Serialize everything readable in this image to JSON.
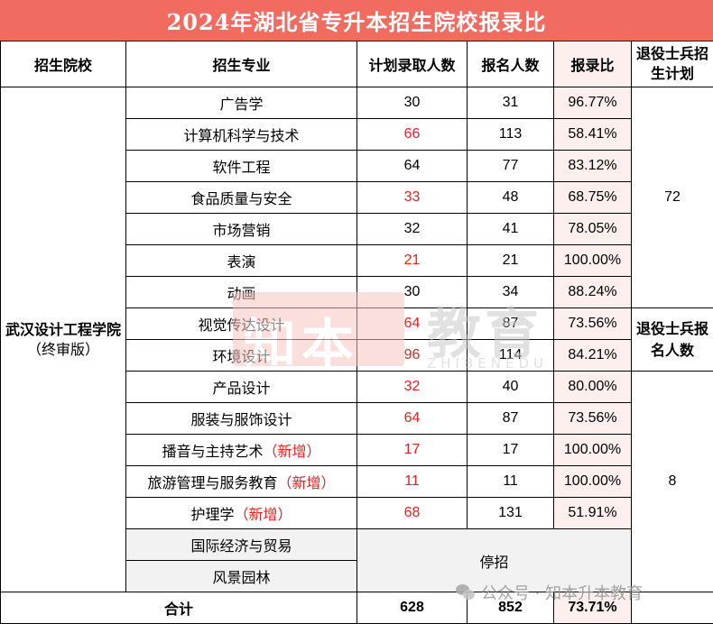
{
  "title": "2024年湖北省专升本招生院校报录比",
  "headers": {
    "school": "招生院校",
    "major": "招生专业",
    "planned": "计划录取人数",
    "applicants": "报名人数",
    "ratio": "报录比",
    "veteran_plan": "退役士兵招生计划",
    "veteran_applicants": "退役士兵报名人数"
  },
  "school": {
    "name": "武汉设计工程学院",
    "note": "（终审版）"
  },
  "rows": [
    {
      "major": "广告学",
      "new_tag": "",
      "planned": "30",
      "planned_red": false,
      "applicants": "31",
      "ratio": "96.77%"
    },
    {
      "major": "计算机科学与技术",
      "new_tag": "",
      "planned": "66",
      "planned_red": true,
      "applicants": "113",
      "ratio": "58.41%"
    },
    {
      "major": "软件工程",
      "new_tag": "",
      "planned": "64",
      "planned_red": false,
      "applicants": "77",
      "ratio": "83.12%"
    },
    {
      "major": "食品质量与安全",
      "new_tag": "",
      "planned": "33",
      "planned_red": true,
      "applicants": "48",
      "ratio": "68.75%"
    },
    {
      "major": "市场营销",
      "new_tag": "",
      "planned": "32",
      "planned_red": false,
      "applicants": "41",
      "ratio": "78.05%"
    },
    {
      "major": "表演",
      "new_tag": "",
      "planned": "21",
      "planned_red": true,
      "applicants": "21",
      "ratio": "100.00%"
    },
    {
      "major": "动画",
      "new_tag": "",
      "planned": "30",
      "planned_red": false,
      "applicants": "34",
      "ratio": "88.24%"
    },
    {
      "major": "视觉传达设计",
      "new_tag": "",
      "planned": "64",
      "planned_red": true,
      "applicants": "87",
      "ratio": "73.56%"
    },
    {
      "major": "环境设计",
      "new_tag": "",
      "planned": "96",
      "planned_red": true,
      "applicants": "114",
      "ratio": "84.21%"
    },
    {
      "major": "产品设计",
      "new_tag": "",
      "planned": "32",
      "planned_red": true,
      "applicants": "40",
      "ratio": "80.00%"
    },
    {
      "major": "服装与服饰设计",
      "new_tag": "",
      "planned": "64",
      "planned_red": true,
      "applicants": "87",
      "ratio": "73.56%"
    },
    {
      "major": "播音与主持艺术",
      "new_tag": "（新增）",
      "planned": "17",
      "planned_red": true,
      "applicants": "17",
      "ratio": "100.00%"
    },
    {
      "major": "旅游管理与服务教育",
      "new_tag": "（新增）",
      "planned": "11",
      "planned_red": true,
      "applicants": "11",
      "ratio": "100.00%"
    },
    {
      "major": "护理学",
      "new_tag": "（新增）",
      "planned": "68",
      "planned_red": true,
      "applicants": "131",
      "ratio": "51.91%"
    }
  ],
  "suspended": {
    "majors": [
      "国际经济与贸易",
      "风景园林"
    ],
    "label": "停招"
  },
  "veteran": {
    "plan_value": "72",
    "applicants_value": "8"
  },
  "total": {
    "label": "合计",
    "planned": "628",
    "applicants": "852",
    "ratio": "73.71%"
  },
  "watermark": {
    "box_text": "知本",
    "main": "教育",
    "sub": "ZHIBENEDU"
  },
  "footer_watermark": {
    "text": "公众号 · 知本升本教育",
    "icon": "wechat-icon"
  },
  "colors": {
    "title_bg": "#f26b60",
    "ratio_bg": "#fcefee",
    "highlight": "#e32222",
    "suspended_bg": "#f2f2f2"
  }
}
